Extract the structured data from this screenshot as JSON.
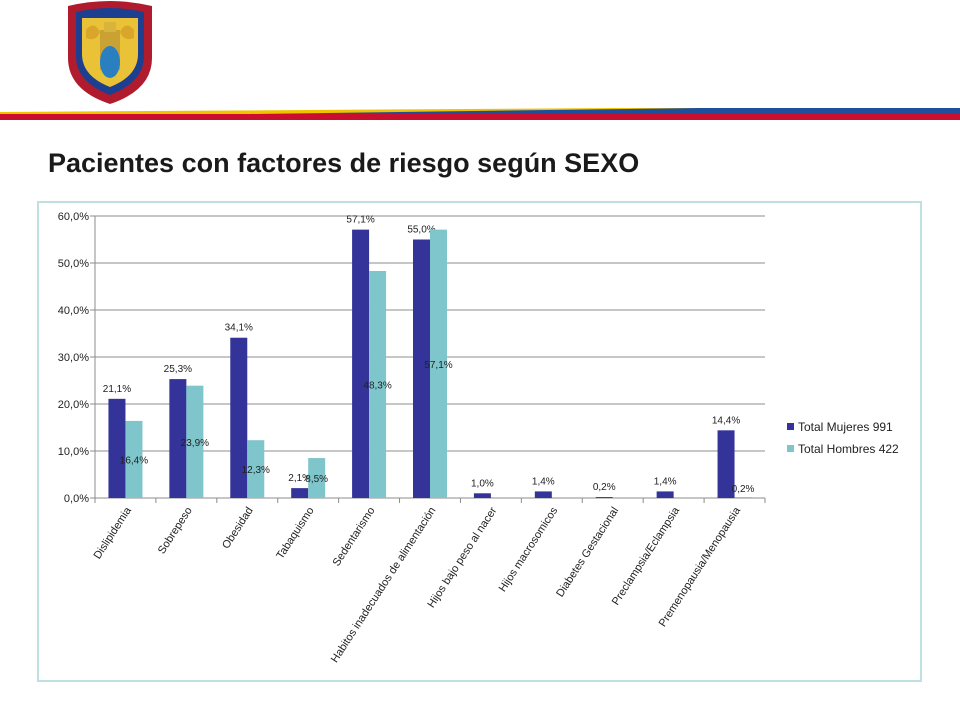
{
  "slide": {
    "title": "Pacientes con factores de riesgo según SEXO"
  },
  "colors": {
    "mujeres": "#333399",
    "hombres": "#7fc6cc",
    "grid": "#8c8c8c",
    "frame": "#bfdfe3",
    "stripe_red": "#c8102e",
    "stripe_yellow": "#f2c200",
    "stripe_blue": "#1f4e9c"
  },
  "logo": {
    "icon": "coat-of-arms-icon"
  },
  "chart_data": {
    "type": "bar",
    "categories": [
      "Dislipidemia",
      "Sobrepeso",
      "Obesidad",
      "Tabaquismo",
      "Sedentarismo",
      "Habitos inadecuados de alimentación",
      "Hijos bajo peso al nacer",
      "Hijos macrosomicos",
      "Diabetes Gestacional",
      "Preclampsia/Eclampsia",
      "Premenopausia/Menopausia"
    ],
    "series": [
      {
        "name": "Total Mujeres 991",
        "values": [
          21.1,
          25.3,
          34.1,
          2.1,
          57.1,
          55.0,
          1.0,
          1.4,
          0.2,
          1.4,
          14.4
        ],
        "labels": [
          "21,1%",
          "25,3%",
          "34,1%",
          "2,1%",
          "57,1%",
          "55,0%",
          "1,0%",
          "1,4%",
          "0,2%",
          "1,4%",
          "14,4%"
        ]
      },
      {
        "name": "Total Hombres 422",
        "values": [
          16.4,
          23.9,
          12.3,
          8.5,
          48.3,
          57.1,
          null,
          null,
          null,
          null,
          0.2
        ],
        "labels": [
          "16,4%",
          "23,9%",
          "12,3%",
          "8,5%",
          "48,3%",
          "57,1%",
          "",
          "",
          "",
          "",
          "0,2%"
        ]
      }
    ],
    "yticks": [
      "0,0%",
      "10,0%",
      "20,0%",
      "30,0%",
      "40,0%",
      "50,0%",
      "60,0%"
    ],
    "ylim": [
      0,
      60
    ],
    "legend_position": "right",
    "grid": true
  }
}
